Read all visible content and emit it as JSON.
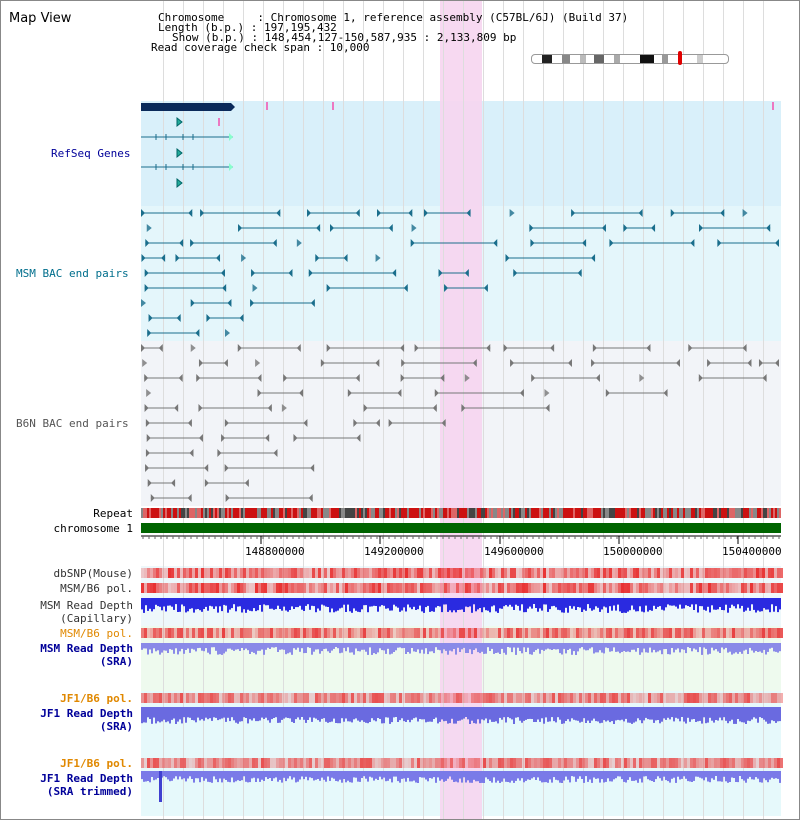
{
  "header": {
    "title": "Map View",
    "chromosome_line": "Chromosome     : Chromosome 1, reference assembly (C57BL/6J) (Build 37)",
    "length_line": "Length (b.p.) : 197,195,432",
    "show_line": "Show (b.p.) : 148,454,127-150,587,935 : 2,133,809 bp",
    "read_cov_line": "Read coverage check span : 10,000"
  },
  "tracks": {
    "refseq": "RefSeq Genes",
    "msm_bac": "MSM BAC end pairs",
    "b6n_bac": "B6N BAC end pairs",
    "repeat": "Repeat",
    "chromosome": "chromosome 1",
    "dbsnp": "dbSNP(Mouse)",
    "msm_b6_pol_1": "MSM/B6 pol.",
    "msm_read_depth_cap_1": "MSM Read Depth",
    "msm_read_depth_cap_2": "(Capillary)",
    "msm_b6_pol_2": "MSM/B6 pol.",
    "msm_read_depth_sra_1": "MSM Read Depth",
    "msm_read_depth_sra_2": "(SRA)",
    "jf1_b6_pol_1": "JF1/B6 pol.",
    "jf1_read_depth_1": "JF1 Read Depth",
    "jf1_read_depth_2": "(SRA)",
    "jf1_b6_pol_2": "JF1/B6 pol.",
    "jf1_read_depth_trim_1": "JF1 Read Depth",
    "jf1_read_depth_trim_2": "(SRA trimmed)"
  },
  "axis": {
    "ticks": [
      "148800000",
      "149200000",
      "149600000",
      "150000000",
      "150400000"
    ]
  },
  "colors": {
    "refseq_bg": "#d9f0fa",
    "msm_bg": "#e4f6fb",
    "b6n_bg": "#f2f4f8",
    "highlight": "#f6d5f0",
    "gene_color": "#1a6e8c",
    "b6n_color": "#777777",
    "label_blue": "#000099",
    "label_teal": "#006e8c",
    "label_orange": "#e08800",
    "chromosome_green": "#006400"
  }
}
